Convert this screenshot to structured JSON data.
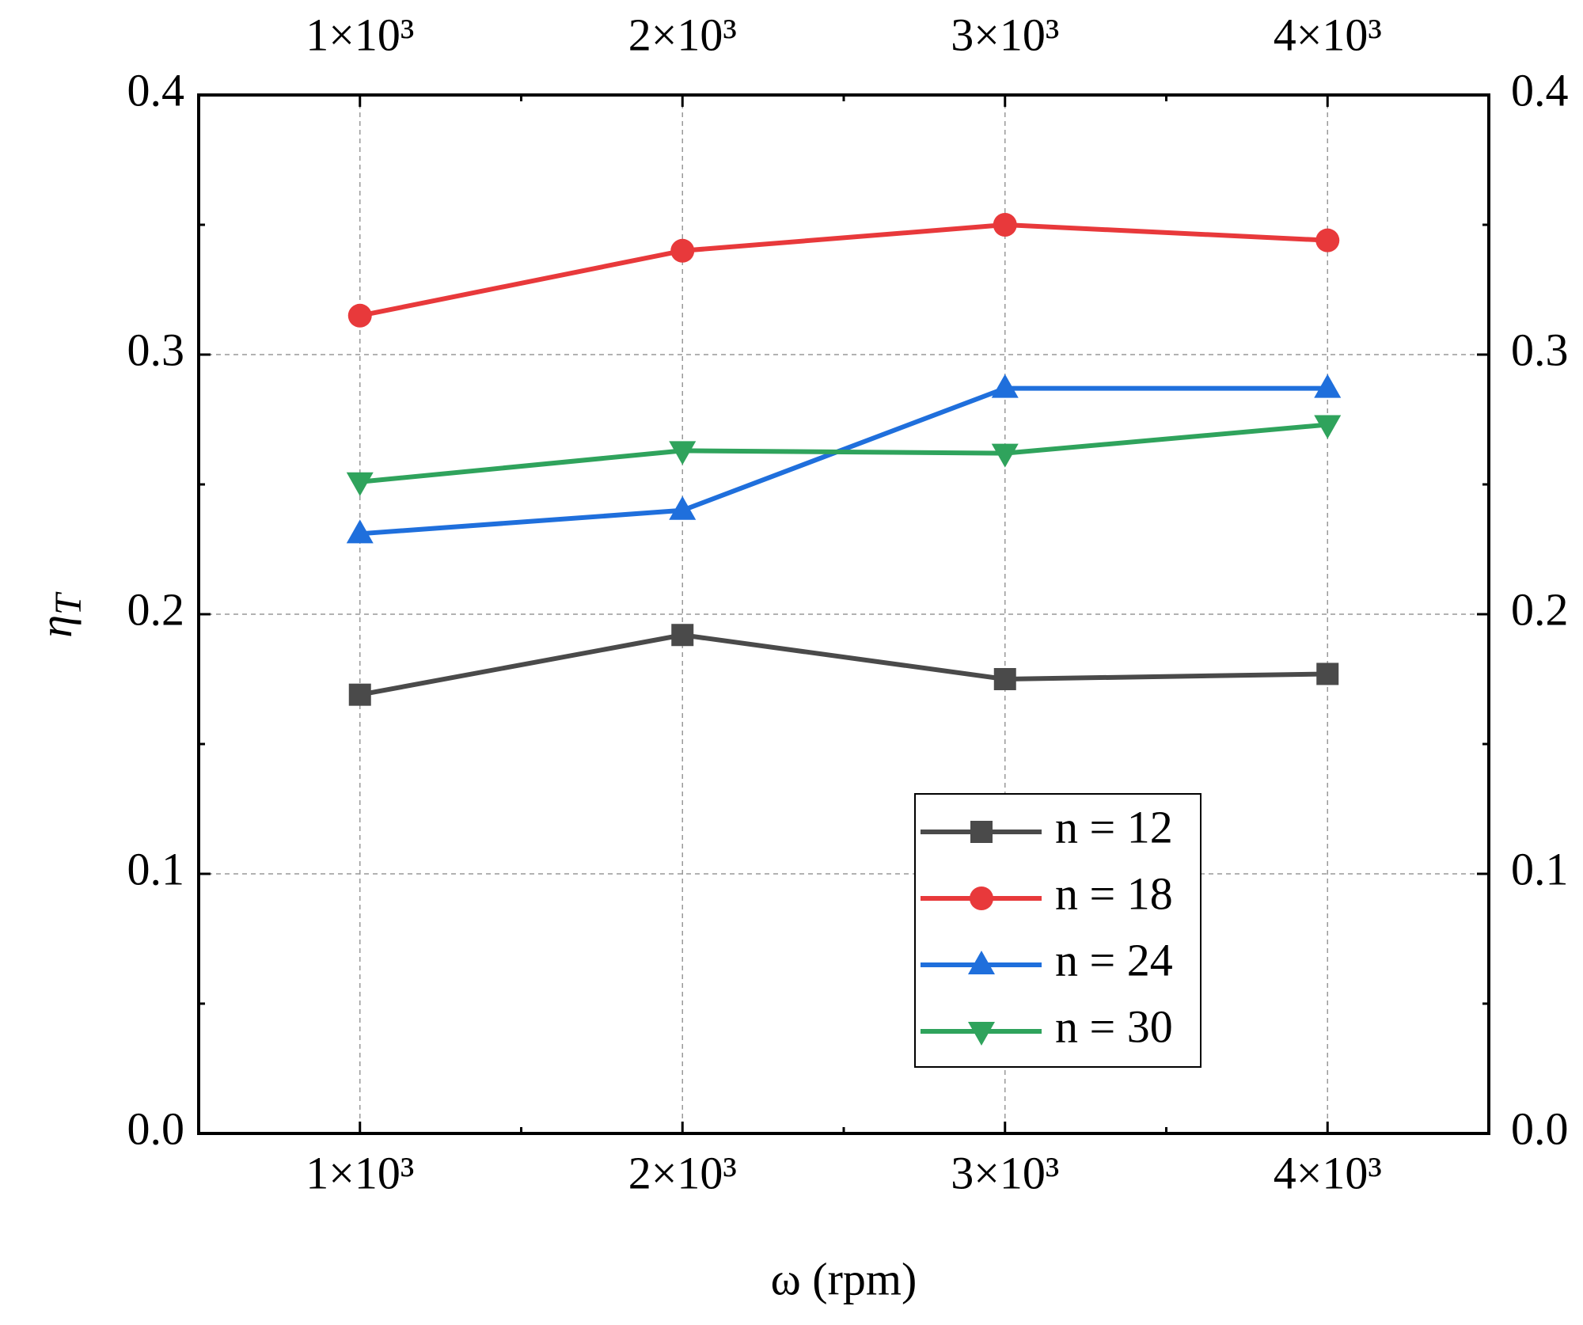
{
  "chart_data": {
    "type": "line",
    "x_label": "ω (rpm)",
    "y_label": {
      "symbol": "η",
      "subscript": "T"
    },
    "x": [
      1000,
      2000,
      3000,
      4000
    ],
    "xlim": [
      500,
      4500
    ],
    "xticks": [
      {
        "value": 1000,
        "label": "1×10³"
      },
      {
        "value": 2000,
        "label": "2×10³"
      },
      {
        "value": 3000,
        "label": "3×10³"
      },
      {
        "value": 4000,
        "label": "4×10³"
      }
    ],
    "ylim": [
      0,
      0.4
    ],
    "yticks": [
      {
        "value": 0,
        "label": "0.0"
      },
      0.1,
      0.2,
      0.3,
      0.4
    ],
    "grid": true,
    "legend": "lower right",
    "series": [
      {
        "name": "n = 12",
        "color": "#4a4a4a",
        "marker": "square",
        "values": [
          0.169,
          0.192,
          0.175,
          0.177
        ]
      },
      {
        "name": "n = 18",
        "color": "#e8393b",
        "marker": "circle",
        "values": [
          0.315,
          0.34,
          0.35,
          0.344
        ]
      },
      {
        "name": "n = 24",
        "color": "#1f6fdc",
        "marker": "triangle-up",
        "values": [
          0.231,
          0.24,
          0.287,
          0.287
        ]
      },
      {
        "name": "n = 30",
        "color": "#2fa35c",
        "marker": "triangle-down",
        "values": [
          0.251,
          0.263,
          0.262,
          0.273
        ]
      }
    ]
  }
}
